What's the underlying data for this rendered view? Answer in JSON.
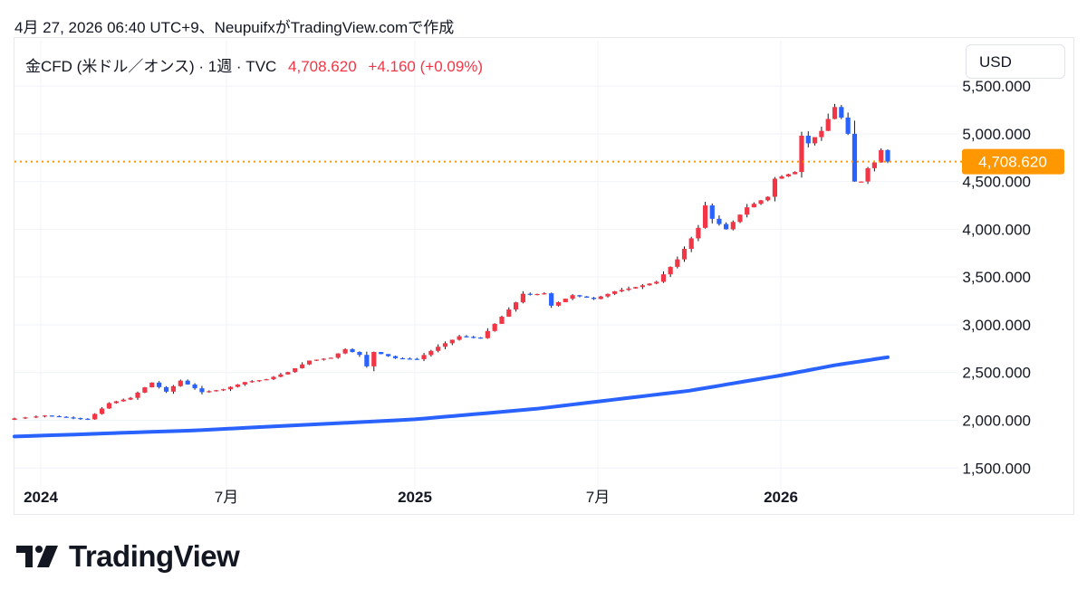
{
  "caption": "4月 27, 2026 06:40 UTC+9、NeupuifxがTradingView.comで作成",
  "legend": {
    "symbol": "金CFD (米ドル／オンス) · 1週 · TVC",
    "price": "4,708.620",
    "change": "+4.160 (+0.09%)"
  },
  "currency_button": "USD",
  "brand": "TradingView",
  "colors": {
    "up": "#f23645",
    "down": "#2962ff",
    "ma": "#2962ff",
    "price_line": "#ff9800"
  },
  "chart_data": {
    "type": "candlestick",
    "interval": "1週",
    "current_price": 4708.62,
    "current_price_label": "4,708.620",
    "y_range": [
      1400,
      5700
    ],
    "y_ticks": [
      {
        "value": 1500,
        "label": "1,500.000"
      },
      {
        "value": 2000,
        "label": "2,000.000"
      },
      {
        "value": 2500,
        "label": "2,500.000"
      },
      {
        "value": 3000,
        "label": "3,000.000"
      },
      {
        "value": 3500,
        "label": "3,500.000"
      },
      {
        "value": 4000,
        "label": "4,000.000"
      },
      {
        "value": 4500,
        "label": "4,500.000"
      },
      {
        "value": 5000,
        "label": "5,000.000"
      },
      {
        "value": 5500,
        "label": "5,500.000"
      }
    ],
    "x_ticks": [
      {
        "date": "2024-01-01",
        "label": "2024",
        "bold": true
      },
      {
        "date": "2024-07-01",
        "label": "7月",
        "bold": false
      },
      {
        "date": "2025-01-01",
        "label": "2025",
        "bold": true
      },
      {
        "date": "2025-07-01",
        "label": "7月",
        "bold": false
      },
      {
        "date": "2026-01-01",
        "label": "2026",
        "bold": true
      }
    ],
    "close_series": [
      {
        "date": "2023-12-15",
        "close": 2020
      },
      {
        "date": "2024-01-05",
        "close": 2050
      },
      {
        "date": "2024-01-26",
        "close": 2030
      },
      {
        "date": "2024-02-16",
        "close": 2010
      },
      {
        "date": "2024-03-08",
        "close": 2180
      },
      {
        "date": "2024-03-29",
        "close": 2235
      },
      {
        "date": "2024-04-12",
        "close": 2345
      },
      {
        "date": "2024-04-19",
        "close": 2395
      },
      {
        "date": "2024-05-03",
        "close": 2300
      },
      {
        "date": "2024-05-17",
        "close": 2415
      },
      {
        "date": "2024-06-07",
        "close": 2295
      },
      {
        "date": "2024-06-28",
        "close": 2325
      },
      {
        "date": "2024-07-19",
        "close": 2400
      },
      {
        "date": "2024-08-09",
        "close": 2430
      },
      {
        "date": "2024-08-30",
        "close": 2505
      },
      {
        "date": "2024-09-20",
        "close": 2625
      },
      {
        "date": "2024-10-11",
        "close": 2655
      },
      {
        "date": "2024-10-25",
        "close": 2745
      },
      {
        "date": "2024-11-08",
        "close": 2685
      },
      {
        "date": "2024-11-15",
        "close": 2565
      },
      {
        "date": "2024-11-22",
        "close": 2715
      },
      {
        "date": "2024-12-13",
        "close": 2650
      },
      {
        "date": "2025-01-03",
        "close": 2640
      },
      {
        "date": "2025-01-24",
        "close": 2770
      },
      {
        "date": "2025-02-14",
        "close": 2880
      },
      {
        "date": "2025-03-07",
        "close": 2860
      },
      {
        "date": "2025-03-28",
        "close": 3085
      },
      {
        "date": "2025-04-11",
        "close": 3235
      },
      {
        "date": "2025-04-18",
        "close": 3325
      },
      {
        "date": "2025-04-25",
        "close": 3315
      },
      {
        "date": "2025-05-09",
        "close": 3330
      },
      {
        "date": "2025-05-16",
        "close": 3200
      },
      {
        "date": "2025-06-06",
        "close": 3310
      },
      {
        "date": "2025-06-27",
        "close": 3270
      },
      {
        "date": "2025-07-18",
        "close": 3350
      },
      {
        "date": "2025-08-08",
        "close": 3395
      },
      {
        "date": "2025-08-29",
        "close": 3450
      },
      {
        "date": "2025-09-19",
        "close": 3685
      },
      {
        "date": "2025-10-10",
        "close": 4015
      },
      {
        "date": "2025-10-17",
        "close": 4250
      },
      {
        "date": "2025-10-24",
        "close": 4110
      },
      {
        "date": "2025-11-07",
        "close": 4000
      },
      {
        "date": "2025-11-28",
        "close": 4230
      },
      {
        "date": "2025-12-19",
        "close": 4340
      },
      {
        "date": "2025-12-26",
        "close": 4530
      },
      {
        "date": "2026-01-16",
        "close": 4600
      },
      {
        "date": "2026-01-23",
        "close": 4980
      },
      {
        "date": "2026-01-30",
        "close": 4900
      },
      {
        "date": "2026-02-13",
        "close": 5030
      },
      {
        "date": "2026-02-27",
        "close": 5280
      },
      {
        "date": "2026-03-06",
        "close": 5170
      },
      {
        "date": "2026-03-13",
        "close": 5000
      },
      {
        "date": "2026-03-20",
        "close": 4500
      },
      {
        "date": "2026-03-27",
        "close": 4500
      },
      {
        "date": "2026-04-03",
        "close": 4640
      },
      {
        "date": "2026-04-10",
        "close": 4700
      },
      {
        "date": "2026-04-17",
        "close": 4830
      },
      {
        "date": "2026-04-24",
        "close": 4708.62
      }
    ],
    "moving_average": [
      {
        "date": "2023-12-15",
        "value": 1830
      },
      {
        "date": "2024-06-01",
        "value": 1895
      },
      {
        "date": "2025-01-01",
        "value": 2010
      },
      {
        "date": "2025-05-01",
        "value": 2120
      },
      {
        "date": "2025-10-01",
        "value": 2310
      },
      {
        "date": "2026-01-01",
        "value": 2470
      },
      {
        "date": "2026-03-01",
        "value": 2580
      },
      {
        "date": "2026-04-24",
        "value": 2660
      }
    ]
  }
}
